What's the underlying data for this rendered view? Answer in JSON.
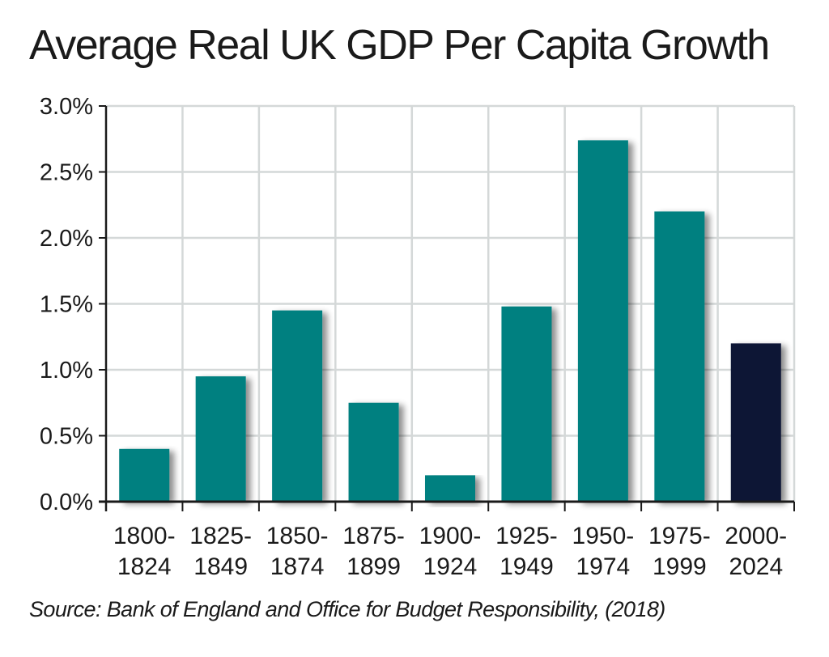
{
  "chart_data": {
    "type": "bar",
    "title": "Average Real UK GDP Per Capita Growth",
    "source": "Source: Bank of England and Office for Budget Responsibility, (2018)",
    "categories": [
      [
        "1800-",
        "1824"
      ],
      [
        "1825-",
        "1849"
      ],
      [
        "1850-",
        "1874"
      ],
      [
        "1875-",
        "1899"
      ],
      [
        "1900-",
        "1924"
      ],
      [
        "1925-",
        "1949"
      ],
      [
        "1950-",
        "1974"
      ],
      [
        "1975-",
        "1999"
      ],
      [
        "2000-",
        "2024"
      ]
    ],
    "values": [
      0.004,
      0.0095,
      0.0145,
      0.0075,
      0.002,
      0.0148,
      0.0274,
      0.022,
      0.012
    ],
    "bar_colors": [
      "#058080",
      "#058080",
      "#058080",
      "#058080",
      "#058080",
      "#058080",
      "#058080",
      "#058080",
      "#0f1535"
    ],
    "ylim": [
      0,
      0.03
    ],
    "yticks": [
      "0.0%",
      "0.5%",
      "1.0%",
      "1.5%",
      "2.0%",
      "2.5%",
      "3.0%"
    ],
    "grid": true,
    "grid_color": "#d4d8d8"
  }
}
